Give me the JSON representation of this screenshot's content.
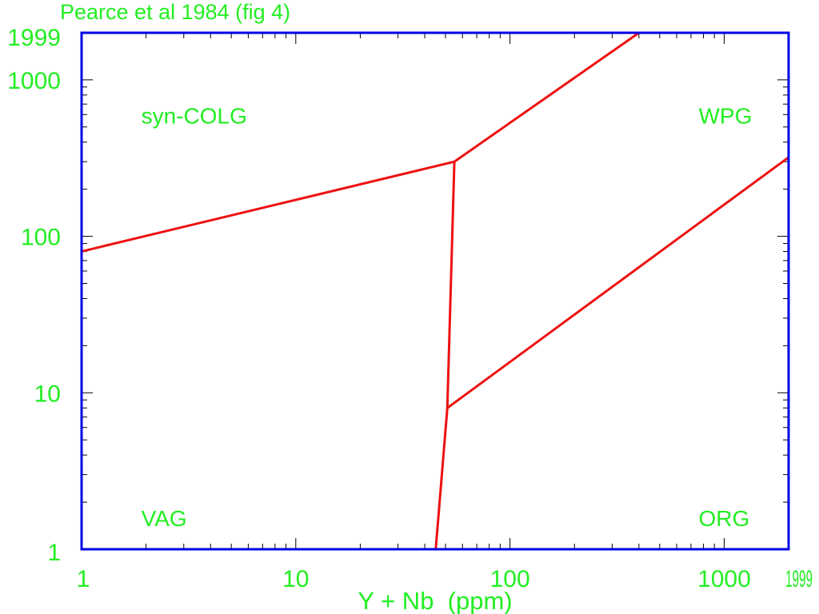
{
  "title": "Pearce et al 1984 (fig 4)",
  "colors": {
    "frame": "#0000e6",
    "ticks": "#000000",
    "labels": "#22ee22",
    "boundary": "#ee1111",
    "background": "#ffffff"
  },
  "chart_data": {
    "type": "line",
    "title": "Pearce et al 1984 (fig 4)",
    "xlabel": "Y + Nb  (ppm)",
    "ylabel": "",
    "xscale": "log",
    "yscale": "log",
    "xlim": [
      1,
      1999
    ],
    "ylim": [
      1,
      1999
    ],
    "grid": false,
    "x_tick_labels": [
      "1",
      "10",
      "100",
      "1000",
      "1999"
    ],
    "x_tick_values": [
      1,
      10,
      100,
      1000,
      1999
    ],
    "y_tick_labels": [
      "1",
      "10",
      "100",
      "1000",
      "1999"
    ],
    "y_tick_values": [
      1,
      10,
      100,
      1000,
      1999
    ],
    "series": [
      {
        "points": [
          [
            1,
            80
          ],
          [
            55,
            300
          ],
          [
            400,
            2000
          ]
        ]
      },
      {
        "points": [
          [
            55,
            300
          ],
          [
            51,
            8
          ],
          [
            2000,
            320
          ]
        ]
      },
      {
        "points": [
          [
            51,
            8
          ],
          [
            45,
            1
          ]
        ]
      }
    ],
    "annotations": [
      {
        "text": "syn-COLG",
        "x": 2,
        "y": 600
      },
      {
        "text": "WPG",
        "x": 800,
        "y": 600
      },
      {
        "text": "VAG",
        "x": 2,
        "y": 1.6
      },
      {
        "text": "ORG",
        "x": 800,
        "y": 1.6
      }
    ]
  }
}
